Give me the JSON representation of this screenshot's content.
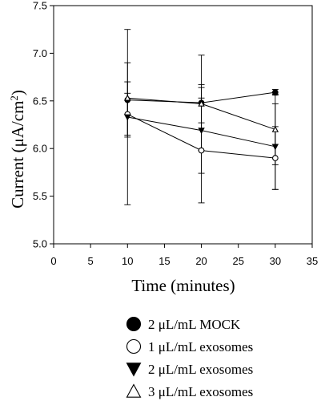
{
  "chart_data": {
    "type": "line",
    "xlabel": "Time (minutes)",
    "ylabel_main": "Current (μA/cm",
    "ylabel_sup": "2",
    "ylabel_close": ")",
    "xlim": [
      0,
      35
    ],
    "ylim": [
      5.0,
      7.5
    ],
    "xticks": [
      0,
      5,
      10,
      15,
      20,
      25,
      30,
      35
    ],
    "xtick_labels": [
      "0",
      "5",
      "10",
      "15",
      "20",
      "25",
      "30",
      "35"
    ],
    "yticks": [
      5.0,
      5.5,
      6.0,
      6.5,
      7.0,
      7.5
    ],
    "ytick_labels": [
      "5.0",
      "5.5",
      "6.0",
      "6.5",
      "7.0",
      "7.5"
    ],
    "grid": false,
    "legend_position": "below",
    "x": [
      10,
      20,
      30
    ],
    "series": [
      {
        "name": "2 μL/mL MOCK",
        "marker": "circle-filled",
        "color": "#000000",
        "values": [
          6.51,
          6.48,
          6.59
        ],
        "errors": [
          0.39,
          0.5,
          0.03
        ]
      },
      {
        "name": "1 μL/mL exosomes",
        "marker": "circle-open",
        "color": "#000000",
        "values": [
          6.36,
          5.98,
          5.9
        ],
        "errors": [
          0.22,
          0.55,
          0.33
        ]
      },
      {
        "name": "2 μL/mL exosomes",
        "marker": "triangle-down-filled",
        "color": "#000000",
        "values": [
          6.33,
          6.19,
          6.02
        ],
        "errors": [
          0.92,
          0.45,
          0.45
        ]
      },
      {
        "name": "3 μL/mL exosomes",
        "marker": "triangle-up-open",
        "color": "#000000",
        "values": [
          6.53,
          6.47,
          6.2
        ],
        "errors": [
          0.17,
          0.2,
          0.37
        ]
      }
    ]
  }
}
